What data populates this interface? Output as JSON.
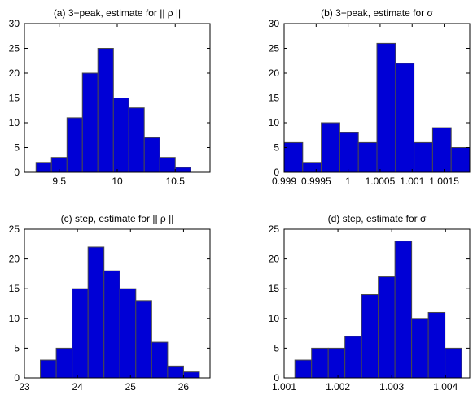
{
  "chart_data": [
    {
      "type": "bar",
      "panel": "a",
      "title": "(a) 3−peak, estimate for || ρ ||",
      "bars": [
        {
          "x0": 9.3,
          "x1": 9.433,
          "value": 2
        },
        {
          "x0": 9.433,
          "x1": 9.567,
          "value": 3
        },
        {
          "x0": 9.567,
          "x1": 9.7,
          "value": 11
        },
        {
          "x0": 9.7,
          "x1": 9.833,
          "value": 20
        },
        {
          "x0": 9.833,
          "x1": 9.967,
          "value": 25
        },
        {
          "x0": 9.967,
          "x1": 10.1,
          "value": 15
        },
        {
          "x0": 10.1,
          "x1": 10.233,
          "value": 13
        },
        {
          "x0": 10.233,
          "x1": 10.367,
          "value": 7
        },
        {
          "x0": 10.367,
          "x1": 10.5,
          "value": 3
        },
        {
          "x0": 10.5,
          "x1": 10.633,
          "value": 1
        }
      ],
      "xlim": [
        9.2,
        10.8
      ],
      "ylim": [
        0,
        30
      ],
      "xticks": [
        9.5,
        10,
        10.5
      ],
      "xtick_labels": [
        "9.5",
        "10",
        "10.5"
      ],
      "yticks": [
        0,
        5,
        10,
        15,
        20,
        25,
        30
      ],
      "ytick_labels": [
        "0",
        "5",
        "10",
        "15",
        "20",
        "25",
        "30"
      ],
      "bar_color": "#0000d6"
    },
    {
      "type": "bar",
      "panel": "b",
      "title": "(b) 3−peak, estimate for σ",
      "bars": [
        {
          "x0": 0.999,
          "x1": 0.99929,
          "value": 6
        },
        {
          "x0": 0.99929,
          "x1": 0.99958,
          "value": 2
        },
        {
          "x0": 0.99958,
          "x1": 0.99987,
          "value": 10
        },
        {
          "x0": 0.99987,
          "x1": 1.00016,
          "value": 8
        },
        {
          "x0": 1.00016,
          "x1": 1.00045,
          "value": 6
        },
        {
          "x0": 1.00045,
          "x1": 1.00074,
          "value": 26
        },
        {
          "x0": 1.00074,
          "x1": 1.00103,
          "value": 22
        },
        {
          "x0": 1.00103,
          "x1": 1.00132,
          "value": 6
        },
        {
          "x0": 1.00132,
          "x1": 1.00161,
          "value": 9
        },
        {
          "x0": 1.00161,
          "x1": 1.0019,
          "value": 5
        }
      ],
      "xlim": [
        0.999,
        1.0019
      ],
      "ylim": [
        0,
        30
      ],
      "xticks": [
        0.999,
        0.9995,
        1,
        1.0005,
        1.001,
        1.0015
      ],
      "xtick_labels": [
        "0.999",
        "0.9995",
        "1",
        "1.0005",
        "1.001",
        "1.0015"
      ],
      "yticks": [
        0,
        5,
        10,
        15,
        20,
        25,
        30
      ],
      "ytick_labels": [
        "0",
        "5",
        "10",
        "15",
        "20",
        "25",
        "30"
      ],
      "bar_color": "#0000d6"
    },
    {
      "type": "bar",
      "panel": "c",
      "title": "(c) step, estimate for || ρ ||",
      "bars": [
        {
          "x0": 23.3,
          "x1": 23.6,
          "value": 3
        },
        {
          "x0": 23.6,
          "x1": 23.9,
          "value": 5
        },
        {
          "x0": 23.9,
          "x1": 24.2,
          "value": 15
        },
        {
          "x0": 24.2,
          "x1": 24.5,
          "value": 22
        },
        {
          "x0": 24.5,
          "x1": 24.8,
          "value": 18
        },
        {
          "x0": 24.8,
          "x1": 25.1,
          "value": 15
        },
        {
          "x0": 25.1,
          "x1": 25.4,
          "value": 13
        },
        {
          "x0": 25.4,
          "x1": 25.7,
          "value": 6
        },
        {
          "x0": 25.7,
          "x1": 26.0,
          "value": 2
        },
        {
          "x0": 26.0,
          "x1": 26.3,
          "value": 1
        }
      ],
      "xlim": [
        23,
        26.5
      ],
      "ylim": [
        0,
        25
      ],
      "xticks": [
        23,
        24,
        25,
        26
      ],
      "xtick_labels": [
        "23",
        "24",
        "25",
        "26"
      ],
      "yticks": [
        0,
        5,
        10,
        15,
        20,
        25
      ],
      "ytick_labels": [
        "0",
        "5",
        "10",
        "15",
        "20",
        "25"
      ],
      "bar_color": "#0000d6"
    },
    {
      "type": "bar",
      "panel": "d",
      "title": "(d) step, estimate for σ",
      "bars": [
        {
          "x0": 1.0012,
          "x1": 1.00151,
          "value": 3
        },
        {
          "x0": 1.00151,
          "x1": 1.00182,
          "value": 5
        },
        {
          "x0": 1.00182,
          "x1": 1.00213,
          "value": 5
        },
        {
          "x0": 1.00213,
          "x1": 1.00244,
          "value": 7
        },
        {
          "x0": 1.00244,
          "x1": 1.00275,
          "value": 14
        },
        {
          "x0": 1.00275,
          "x1": 1.00306,
          "value": 17
        },
        {
          "x0": 1.00306,
          "x1": 1.00337,
          "value": 23
        },
        {
          "x0": 1.00337,
          "x1": 1.00368,
          "value": 10
        },
        {
          "x0": 1.00368,
          "x1": 1.00399,
          "value": 11
        },
        {
          "x0": 1.00399,
          "x1": 1.0043,
          "value": 5
        }
      ],
      "xlim": [
        1.001,
        1.00445
      ],
      "ylim": [
        0,
        25
      ],
      "xticks": [
        1.001,
        1.002,
        1.003,
        1.004
      ],
      "xtick_labels": [
        "1.001",
        "1.002",
        "1.003",
        "1.004"
      ],
      "yticks": [
        0,
        5,
        10,
        15,
        20,
        25
      ],
      "ytick_labels": [
        "0",
        "5",
        "10",
        "15",
        "20",
        "25"
      ],
      "bar_color": "#0000d6"
    }
  ]
}
